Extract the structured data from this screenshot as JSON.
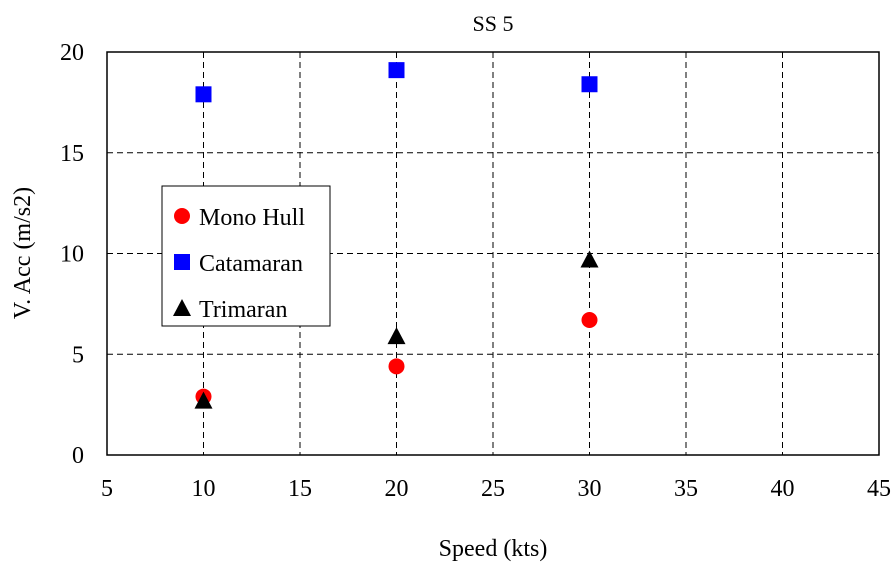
{
  "chart_data": {
    "type": "scatter",
    "title": "SS 5",
    "xlabel": "Speed (kts)",
    "ylabel": "V. Acc (m/s2)",
    "xlim": [
      5,
      45
    ],
    "ylim": [
      0,
      20
    ],
    "xticks": [
      5,
      10,
      15,
      20,
      25,
      30,
      35,
      40,
      45
    ],
    "yticks": [
      0,
      5,
      10,
      15,
      20
    ],
    "grid": true,
    "legend_position": "left",
    "series": [
      {
        "name": "Mono Hull",
        "marker": "circle",
        "color": "#ff0000",
        "points": [
          {
            "x": 10,
            "y": 2.9
          },
          {
            "x": 20,
            "y": 4.4
          },
          {
            "x": 30,
            "y": 6.7
          }
        ]
      },
      {
        "name": "Catamaran",
        "marker": "square",
        "color": "#0000ff",
        "points": [
          {
            "x": 10,
            "y": 17.9
          },
          {
            "x": 20,
            "y": 19.1
          },
          {
            "x": 30,
            "y": 18.4
          }
        ]
      },
      {
        "name": "Trimaran",
        "marker": "triangle",
        "color": "#000000",
        "points": [
          {
            "x": 10,
            "y": 2.7
          },
          {
            "x": 20,
            "y": 5.9
          },
          {
            "x": 30,
            "y": 9.7
          }
        ]
      }
    ]
  }
}
